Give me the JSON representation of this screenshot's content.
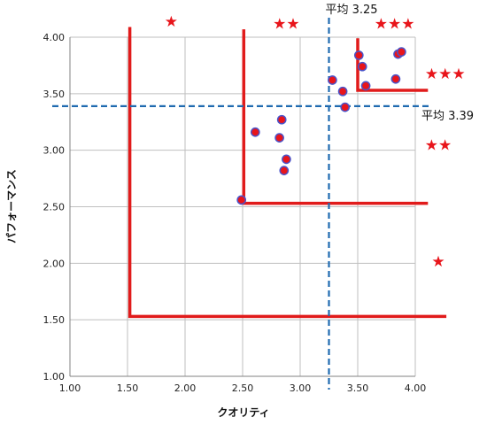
{
  "chart_data": {
    "type": "scatter",
    "xlabel": "クオリティ",
    "ylabel": "パフォーマンス",
    "xlim": [
      1.0,
      4.0
    ],
    "ylim": [
      1.0,
      4.0
    ],
    "x_ticks": [
      "1.00",
      "1.50",
      "2.00",
      "2.50",
      "3.00",
      "3.50",
      "4.00"
    ],
    "y_ticks": [
      "1.00",
      "1.50",
      "2.00",
      "2.50",
      "3.00",
      "3.50",
      "4.00"
    ],
    "grid": true,
    "points": [
      {
        "x": 2.49,
        "y": 2.56
      },
      {
        "x": 2.61,
        "y": 3.16
      },
      {
        "x": 2.82,
        "y": 3.11
      },
      {
        "x": 2.84,
        "y": 3.27
      },
      {
        "x": 2.86,
        "y": 2.82
      },
      {
        "x": 2.88,
        "y": 2.92
      },
      {
        "x": 3.28,
        "y": 3.62
      },
      {
        "x": 3.37,
        "y": 3.52
      },
      {
        "x": 3.39,
        "y": 3.38
      },
      {
        "x": 3.51,
        "y": 3.84
      },
      {
        "x": 3.54,
        "y": 3.74
      },
      {
        "x": 3.57,
        "y": 3.57
      },
      {
        "x": 3.83,
        "y": 3.63
      },
      {
        "x": 3.85,
        "y": 3.85
      },
      {
        "x": 3.88,
        "y": 3.87
      }
    ],
    "averages": {
      "x": {
        "value": 3.25,
        "label": "平均 3.25"
      },
      "y": {
        "value": 3.39,
        "label": "平均 3.39"
      }
    },
    "rating_zones": [
      {
        "stars": "★",
        "x_start": 1.52,
        "y_start": 1.53
      },
      {
        "stars": "★★",
        "x_start": 2.51,
        "y_start": 2.53
      },
      {
        "stars": "★★★",
        "x_start": 3.5,
        "y_start": 3.53
      }
    ],
    "star_labels": [
      {
        "text": "★",
        "x": 1.88,
        "y": 4.14
      },
      {
        "text": "★★",
        "x": 2.88,
        "y": 4.12
      },
      {
        "text": "★★★",
        "x": 3.82,
        "y": 4.12
      },
      {
        "text": "★★★",
        "x": 4.26,
        "y": 3.68
      },
      {
        "text": "★★",
        "x": 4.2,
        "y": 3.05
      },
      {
        "text": "★",
        "x": 4.2,
        "y": 2.02
      }
    ],
    "colors": {
      "point_fill": "#e8151b",
      "point_stroke": "#4a53c9",
      "zone_line": "#e11b1b",
      "average_line": "#1f6ab0",
      "grid": "#bfbfbf",
      "axis": "#808080"
    }
  }
}
